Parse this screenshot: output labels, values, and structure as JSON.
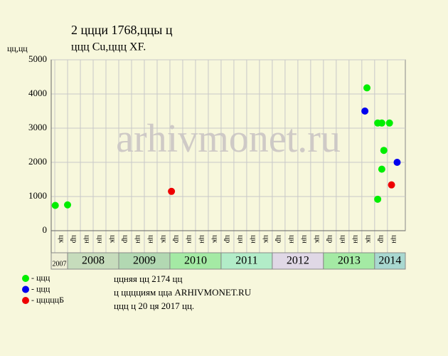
{
  "chart_data": {
    "type": "scatter",
    "title": "2 ццци 1768,ццы ц",
    "subtitle": "ццц Cu,ццц XF.",
    "y_label": "цц,цц",
    "watermark": "arhivmonet.ru",
    "notes": [
      "ццняя цц 2174 цц",
      "ц цццциям цца ARHIVMONET.RU",
      "ццц ц 20 ця 2017 цц."
    ],
    "xlim": [
      2007.68,
      2014.6
    ],
    "ylim": [
      0,
      5000
    ],
    "yticks": [
      0,
      1000,
      2000,
      3000,
      4000,
      5000
    ],
    "grid": true,
    "xticks": [
      {
        "value": 2007.875,
        "label": "цк"
      },
      {
        "value": 2008.125,
        "label": "цр"
      },
      {
        "value": 2008.375,
        "label": "цн"
      },
      {
        "value": 2008.625,
        "label": "цн"
      },
      {
        "value": 2008.875,
        "label": "цк"
      },
      {
        "value": 2009.125,
        "label": "цр"
      },
      {
        "value": 2009.375,
        "label": "цн"
      },
      {
        "value": 2009.625,
        "label": "цн"
      },
      {
        "value": 2009.875,
        "label": "цк"
      },
      {
        "value": 2010.125,
        "label": "цр"
      },
      {
        "value": 2010.375,
        "label": "цн"
      },
      {
        "value": 2010.625,
        "label": "цн"
      },
      {
        "value": 2010.875,
        "label": "цк"
      },
      {
        "value": 2011.125,
        "label": "цр"
      },
      {
        "value": 2011.375,
        "label": "цн"
      },
      {
        "value": 2011.625,
        "label": "цн"
      },
      {
        "value": 2011.875,
        "label": "цк"
      },
      {
        "value": 2012.125,
        "label": "цр"
      },
      {
        "value": 2012.375,
        "label": "цн"
      },
      {
        "value": 2012.625,
        "label": "цн"
      },
      {
        "value": 2012.875,
        "label": "цк"
      },
      {
        "value": 2013.125,
        "label": "цр"
      },
      {
        "value": 2013.375,
        "label": "цн"
      },
      {
        "value": 2013.625,
        "label": "цн"
      },
      {
        "value": 2013.875,
        "label": "цк"
      },
      {
        "value": 2014.125,
        "label": "цр"
      },
      {
        "value": 2014.375,
        "label": "цн"
      }
    ],
    "years": [
      {
        "year": 2007,
        "color": "#efefd6"
      },
      {
        "year": 2008,
        "color": "#c6dcbc"
      },
      {
        "year": 2009,
        "color": "#b2d8b2"
      },
      {
        "year": 2010,
        "color": "#a4eaa4"
      },
      {
        "year": 2011,
        "color": "#b2ecc8"
      },
      {
        "year": 2012,
        "color": "#e0d8e6"
      },
      {
        "year": 2013,
        "color": "#a4eaa4"
      },
      {
        "year": 2014,
        "color": "#a8d8d0"
      }
    ],
    "series": [
      {
        "name": "- ццц",
        "color": "#00ee00",
        "x": [
          2007.76,
          2008.0,
          2013.85,
          2014.06,
          2014.06,
          2014.14,
          2014.14,
          2014.18,
          2014.29
        ],
        "values": [
          740,
          755,
          4180,
          3150,
          920,
          3150,
          1800,
          2350,
          3150
        ]
      },
      {
        "name": "- ццц",
        "color": "#0000ee",
        "x": [
          2013.81,
          2014.44
        ],
        "values": [
          3500,
          2000
        ]
      },
      {
        "name": "- цццццБ",
        "color": "#ee0000",
        "x": [
          2010.03,
          2014.33
        ],
        "values": [
          1150,
          1340
        ]
      }
    ]
  }
}
